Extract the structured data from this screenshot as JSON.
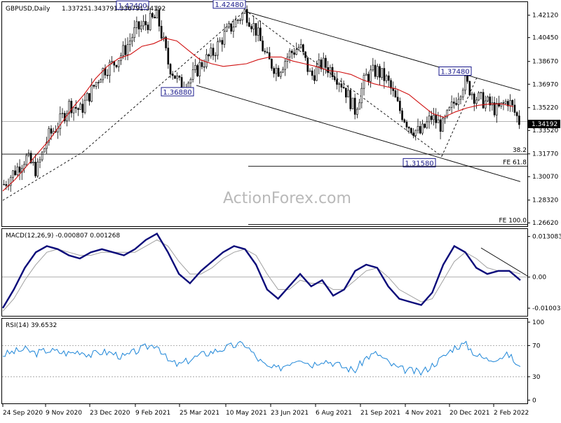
{
  "chart_data": [
    {
      "type": "candlestick",
      "symbol_title": "GBPUSD,Daily",
      "ohlc_header": {
        "open": "1.33725",
        "high": "1.34379",
        "low": "1.33679",
        "close": "1.34192"
      },
      "watermark": "ActionForex.com",
      "last_price": "1.34192",
      "y_ticks": [
        "1.42120",
        "1.40450",
        "1.38670",
        "1.36970",
        "1.35220",
        "1.33520",
        "1.31770",
        "1.30070",
        "1.28320",
        "1.26620"
      ],
      "ylim": [
        1.2637,
        1.431
      ],
      "x_ticks": [
        "24 Sep 2020",
        "9 Nov 2020",
        "23 Dec 2020",
        "9 Feb 2021",
        "25 Mar 2021",
        "10 May 2021",
        "23 Jun 2021",
        "6 Aug 2021",
        "21 Sep 2021",
        "4 Nov 2021",
        "20 Dec 2021",
        "2 Feb 2022"
      ],
      "price_labels": [
        "1.42400",
        "1.42480",
        "1.36880",
        "1.37480",
        "1.31580"
      ],
      "fib_labels": [
        "38.2",
        "FE 61.8",
        "FE 100.0"
      ],
      "fib_levels": [
        1.3175,
        1.3085,
        1.265
      ],
      "price_path": [
        1.295,
        1.305,
        1.315,
        1.305,
        1.33,
        1.34,
        1.355,
        1.35,
        1.365,
        1.38,
        1.385,
        1.395,
        1.41,
        1.415,
        1.42,
        1.385,
        1.37,
        1.373,
        1.385,
        1.392,
        1.405,
        1.415,
        1.424,
        1.41,
        1.388,
        1.38,
        1.392,
        1.398,
        1.375,
        1.385,
        1.38,
        1.368,
        1.35,
        1.375,
        1.38,
        1.372,
        1.352,
        1.338,
        1.333,
        1.345,
        1.338,
        1.355,
        1.372,
        1.36,
        1.356,
        1.35,
        1.358,
        1.342
      ],
      "ma_path": [
        1.29,
        1.298,
        1.308,
        1.318,
        1.328,
        1.34,
        1.352,
        1.362,
        1.374,
        1.383,
        1.389,
        1.392,
        1.398,
        1.4,
        1.404,
        1.402,
        1.395,
        1.388,
        1.385,
        1.383,
        1.384,
        1.385,
        1.388,
        1.39,
        1.39,
        1.387,
        1.385,
        1.383,
        1.38,
        1.379,
        1.377,
        1.373,
        1.37,
        1.368,
        1.366,
        1.362,
        1.355,
        1.348,
        1.345,
        1.349,
        1.352,
        1.354,
        1.355,
        1.355,
        1.353
      ]
    },
    {
      "type": "line",
      "title": "MACD(12,26,9) -0.000807 0.001268",
      "y_ticks": [
        "0.013083",
        "0.00",
        "-0.01003"
      ],
      "ylim": [
        -0.0125,
        0.0155
      ],
      "series": [
        {
          "values": [
            -0.01,
            -0.004,
            0.003,
            0.008,
            0.01,
            0.009,
            0.007,
            0.006,
            0.008,
            0.009,
            0.008,
            0.007,
            0.009,
            0.012,
            0.014,
            0.008,
            0.001,
            -0.002,
            0.002,
            0.005,
            0.008,
            0.01,
            0.009,
            0.004,
            -0.004,
            -0.007,
            -0.003,
            0.001,
            -0.003,
            -0.001,
            -0.006,
            -0.004,
            0.002,
            0.004,
            0.003,
            -0.003,
            -0.007,
            -0.008,
            -0.009,
            -0.005,
            0.004,
            0.01,
            0.008,
            0.003,
            0.001,
            0.002,
            0.002,
            -0.001
          ]
        },
        {
          "values": [
            -0.011,
            -0.007,
            -0.001,
            0.004,
            0.008,
            0.009,
            0.008,
            0.007,
            0.007,
            0.008,
            0.008,
            0.008,
            0.008,
            0.01,
            0.012,
            0.01,
            0.005,
            0.001,
            0.001,
            0.003,
            0.006,
            0.008,
            0.009,
            0.007,
            0.001,
            -0.004,
            -0.004,
            -0.001,
            -0.002,
            -0.002,
            -0.004,
            -0.004,
            -0.001,
            0.002,
            0.003,
            0.0,
            -0.004,
            -0.006,
            -0.008,
            -0.007,
            -0.001,
            0.005,
            0.008,
            0.006,
            0.003,
            0.002,
            0.002,
            0.001
          ]
        }
      ]
    },
    {
      "type": "line",
      "title": "RSI(14) 39.6532",
      "y_ticks": [
        "100",
        "70",
        "30",
        "0"
      ],
      "ylim": [
        0,
        100
      ],
      "series": [
        {
          "values": [
            58,
            62,
            65,
            60,
            64,
            62,
            60,
            63,
            58,
            62,
            60,
            55,
            62,
            68,
            72,
            50,
            45,
            52,
            58,
            62,
            66,
            70,
            72,
            55,
            42,
            40,
            48,
            55,
            45,
            52,
            48,
            42,
            38,
            55,
            60,
            48,
            40,
            38,
            35,
            45,
            55,
            68,
            72,
            58,
            52,
            55,
            58,
            40
          ]
        }
      ]
    }
  ]
}
